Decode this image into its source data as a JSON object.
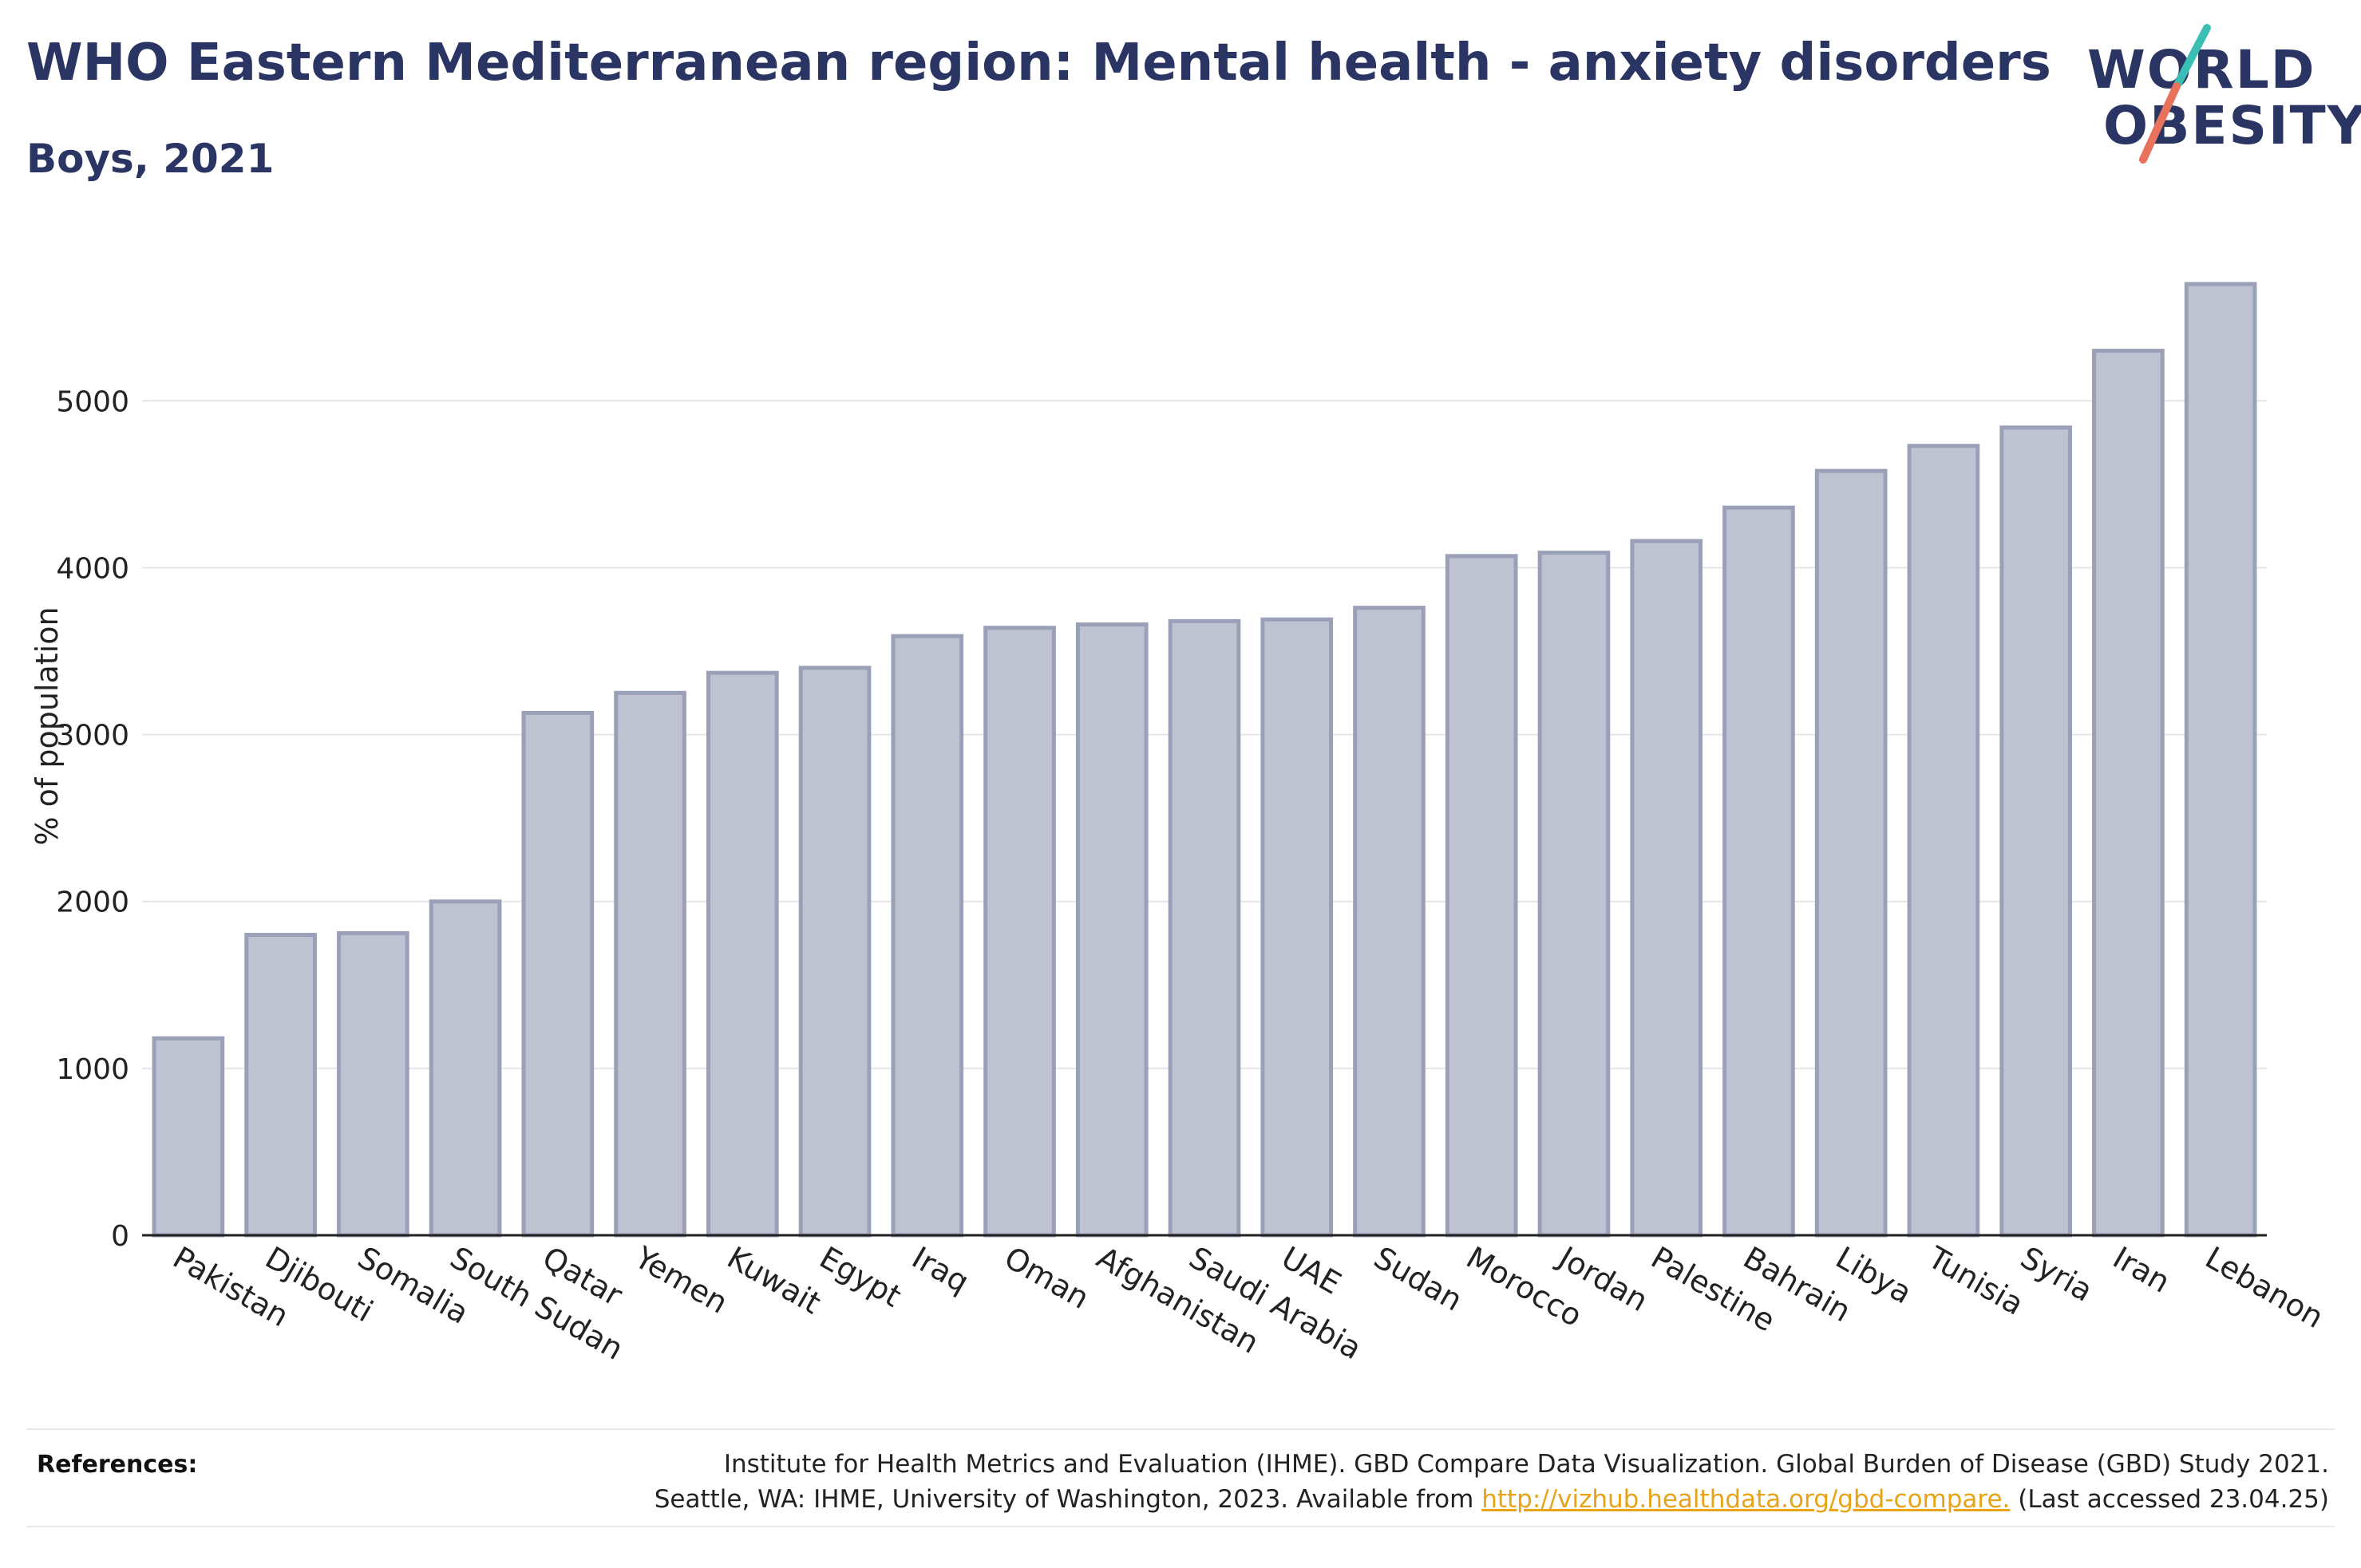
{
  "header": {
    "title": "WHO Eastern Mediterranean region: Mental health - anxiety disorders",
    "subtitle": "Boys, 2021"
  },
  "logo": {
    "line1": "WORLD",
    "line2": "OBESITY",
    "slash_colors": [
      "#3bbfb5",
      "#e8725c"
    ]
  },
  "colors": {
    "bar_fill": "#bfc2d0",
    "bar_stroke": "#9aa0b8",
    "text": "#2a3563",
    "link": "#e8a317"
  },
  "chart_data": {
    "type": "bar",
    "ylabel": "% of population",
    "xlabel": "",
    "ylim": [
      0,
      5800
    ],
    "yticks": [
      0,
      1000,
      2000,
      3000,
      4000,
      5000
    ],
    "grid": true,
    "categories": [
      "Pakistan",
      "Djibouti",
      "Somalia",
      "South Sudan",
      "Qatar",
      "Yemen",
      "Kuwait",
      "Egypt",
      "Iraq",
      "Oman",
      "Afghanistan",
      "Saudi Arabia",
      "UAE",
      "Sudan",
      "Morocco",
      "Jordan",
      "Palestine",
      "Bahrain",
      "Libya",
      "Tunisia",
      "Syria",
      "Iran",
      "Lebanon"
    ],
    "values": [
      1180,
      1800,
      1810,
      2000,
      3130,
      3250,
      3370,
      3400,
      3590,
      3640,
      3660,
      3680,
      3690,
      3760,
      4070,
      4090,
      4160,
      4360,
      4580,
      4730,
      4840,
      5300,
      5700
    ]
  },
  "references": {
    "label": "References:",
    "line1": "Institute for Health Metrics and Evaluation (IHME). GBD Compare Data Visualization. Global Burden of Disease (GBD) Study 2021.",
    "line2_prefix": "Seattle, WA: IHME, University of Washington, 2023. Available from",
    "link_text": "http://vizhub.healthdata.org/gbd-compare.",
    "line2_suffix": "(Last accessed 23.04.25)"
  }
}
